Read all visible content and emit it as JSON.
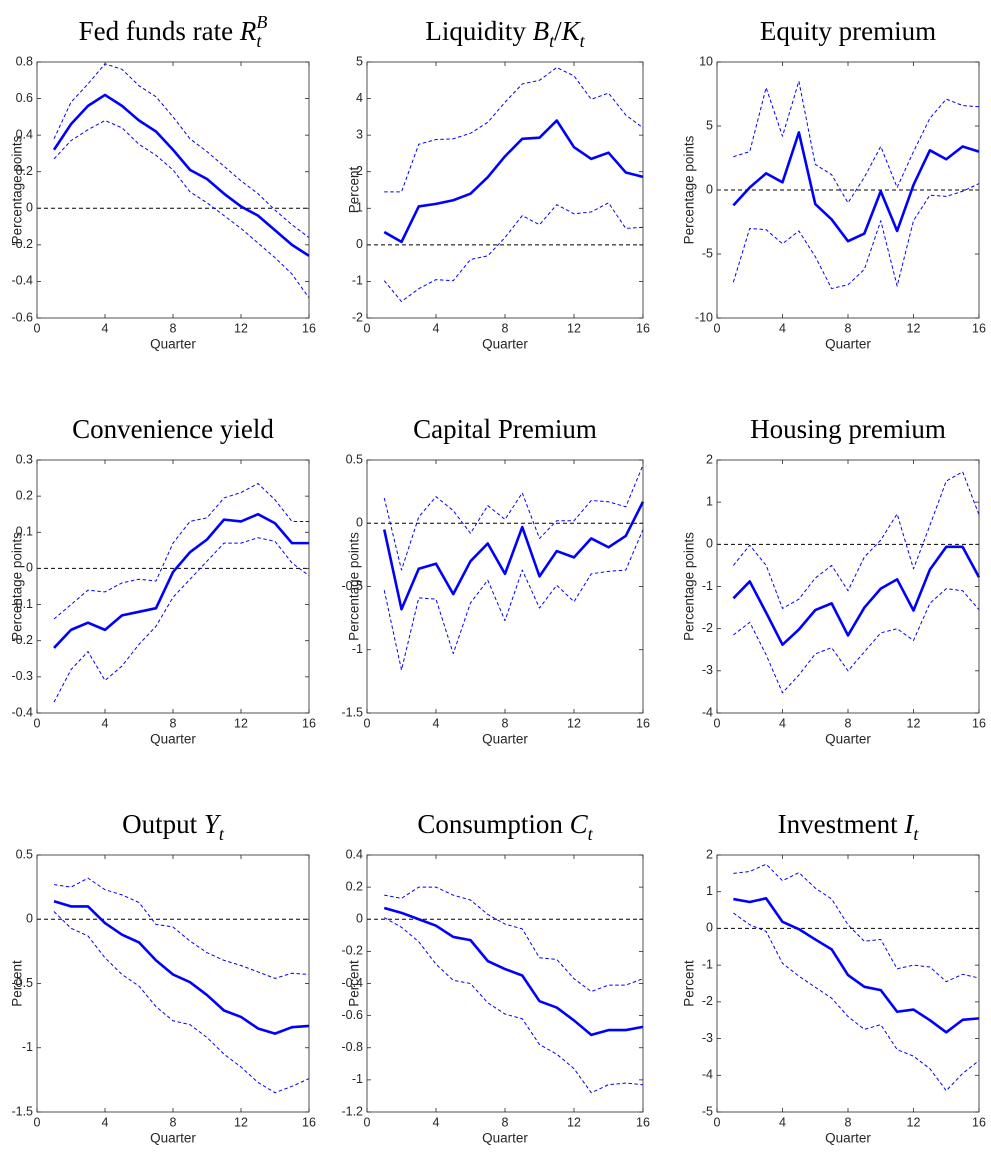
{
  "chart_data": [
    {
      "type": "line",
      "title": [
        {
          "text": "Fed funds rate "
        },
        {
          "text": "R",
          "italic": true,
          "sub": "t",
          "sup": "B"
        }
      ],
      "xlabel": "Quarter",
      "ylabel": "Percentage points",
      "x": [
        1,
        2,
        3,
        4,
        5,
        6,
        7,
        8,
        9,
        10,
        11,
        12,
        13,
        14,
        15,
        16
      ],
      "xlim": [
        0,
        16
      ],
      "xticks": [
        0,
        4,
        8,
        12,
        16
      ],
      "ylim": [
        -0.6,
        0.8
      ],
      "yticks": [
        -0.6,
        -0.4,
        -0.2,
        0,
        0.2,
        0.4,
        0.6,
        0.8
      ],
      "zero_line": 0,
      "series": [
        {
          "style": "solid",
          "color": "#0000ff",
          "values": [
            0.32,
            0.46,
            0.56,
            0.62,
            0.56,
            0.48,
            0.42,
            0.32,
            0.21,
            0.16,
            0.08,
            0.01,
            -0.04,
            -0.12,
            -0.2,
            -0.26
          ]
        },
        {
          "style": "dashed",
          "color": "#0000ff",
          "values": [
            0.38,
            0.58,
            0.68,
            0.79,
            0.76,
            0.67,
            0.61,
            0.5,
            0.38,
            0.31,
            0.23,
            0.15,
            0.08,
            -0.01,
            -0.09,
            -0.16
          ]
        },
        {
          "style": "dashed",
          "color": "#0000ff",
          "values": [
            0.27,
            0.37,
            0.43,
            0.48,
            0.44,
            0.35,
            0.29,
            0.21,
            0.09,
            0.03,
            -0.04,
            -0.11,
            -0.19,
            -0.27,
            -0.36,
            -0.49
          ]
        }
      ]
    },
    {
      "type": "line",
      "title": [
        {
          "text": "Liquidity "
        },
        {
          "text": "B",
          "italic": true,
          "sub": "t"
        },
        {
          "text": "/"
        },
        {
          "text": "K",
          "italic": true,
          "sub": "t"
        }
      ],
      "xlabel": "Quarter",
      "ylabel": "Percent",
      "x": [
        1,
        2,
        3,
        4,
        5,
        6,
        7,
        8,
        9,
        10,
        11,
        12,
        13,
        14,
        15,
        16
      ],
      "xlim": [
        0,
        16
      ],
      "xticks": [
        0,
        4,
        8,
        12,
        16
      ],
      "ylim": [
        -2,
        5
      ],
      "yticks": [
        -2,
        -1,
        0,
        1,
        2,
        3,
        4,
        5
      ],
      "zero_line": 0,
      "series": [
        {
          "style": "solid",
          "color": "#0000ff",
          "values": [
            0.35,
            0.08,
            1.05,
            1.12,
            1.22,
            1.4,
            1.85,
            2.42,
            2.9,
            2.93,
            3.4,
            2.67,
            2.35,
            2.52,
            1.98,
            1.86
          ]
        },
        {
          "style": "dashed",
          "color": "#0000ff",
          "values": [
            1.45,
            1.45,
            2.75,
            2.88,
            2.9,
            3.05,
            3.35,
            3.9,
            4.4,
            4.5,
            4.85,
            4.62,
            3.98,
            4.15,
            3.55,
            3.2
          ]
        },
        {
          "style": "dashed",
          "color": "#0000ff",
          "values": [
            -0.98,
            -1.55,
            -1.2,
            -0.95,
            -0.98,
            -0.4,
            -0.3,
            0.2,
            0.8,
            0.55,
            1.1,
            0.85,
            0.9,
            1.15,
            0.45,
            0.48
          ]
        }
      ]
    },
    {
      "type": "line",
      "title": [
        {
          "text": "Equity premium"
        }
      ],
      "xlabel": "Quarter",
      "ylabel": "Percentage points",
      "x": [
        1,
        2,
        3,
        4,
        5,
        6,
        7,
        8,
        9,
        10,
        11,
        12,
        13,
        14,
        15,
        16
      ],
      "xlim": [
        0,
        16
      ],
      "xticks": [
        0,
        4,
        8,
        12,
        16
      ],
      "ylim": [
        -10,
        10
      ],
      "yticks": [
        -10,
        -5,
        0,
        5,
        10
      ],
      "zero_line": 0,
      "series": [
        {
          "style": "solid",
          "color": "#0000ff",
          "values": [
            -1.2,
            0.2,
            1.3,
            0.6,
            4.5,
            -1.1,
            -2.3,
            -4.0,
            -3.4,
            -0.1,
            -3.2,
            0.4,
            3.1,
            2.4,
            3.4,
            3.0
          ]
        },
        {
          "style": "dashed",
          "color": "#0000ff",
          "values": [
            2.6,
            3.0,
            8.0,
            4.2,
            8.5,
            2.0,
            1.2,
            -1.0,
            1.0,
            3.4,
            0.2,
            3.0,
            5.6,
            7.1,
            6.6,
            6.5
          ]
        },
        {
          "style": "dashed",
          "color": "#0000ff",
          "values": [
            -7.2,
            -3.0,
            -3.1,
            -4.2,
            -3.2,
            -5.2,
            -7.7,
            -7.4,
            -6.2,
            -2.4,
            -7.5,
            -2.4,
            -0.4,
            -0.5,
            -0.1,
            0.5
          ]
        }
      ]
    },
    {
      "type": "line",
      "title": [
        {
          "text": "Convenience yield"
        }
      ],
      "xlabel": "Quarter",
      "ylabel": "Percentage points",
      "x": [
        1,
        2,
        3,
        4,
        5,
        6,
        7,
        8,
        9,
        10,
        11,
        12,
        13,
        14,
        15,
        16
      ],
      "xlim": [
        0,
        16
      ],
      "xticks": [
        0,
        4,
        8,
        12,
        16
      ],
      "ylim": [
        -0.4,
        0.3
      ],
      "yticks": [
        -0.4,
        -0.3,
        -0.2,
        -0.1,
        0,
        0.1,
        0.2,
        0.3
      ],
      "zero_line": 0,
      "series": [
        {
          "style": "solid",
          "color": "#0000ff",
          "values": [
            -0.22,
            -0.17,
            -0.15,
            -0.17,
            -0.13,
            -0.12,
            -0.11,
            -0.01,
            0.045,
            0.08,
            0.135,
            0.13,
            0.15,
            0.125,
            0.07,
            0.07
          ]
        },
        {
          "style": "dashed",
          "color": "#0000ff",
          "values": [
            -0.14,
            -0.1,
            -0.06,
            -0.065,
            -0.04,
            -0.03,
            -0.035,
            0.07,
            0.13,
            0.14,
            0.195,
            0.21,
            0.235,
            0.19,
            0.13,
            0.13
          ]
        },
        {
          "style": "dashed",
          "color": "#0000ff",
          "values": [
            -0.37,
            -0.28,
            -0.23,
            -0.31,
            -0.27,
            -0.21,
            -0.16,
            -0.08,
            -0.03,
            0.02,
            0.07,
            0.07,
            0.085,
            0.075,
            0.015,
            -0.02
          ]
        }
      ]
    },
    {
      "type": "line",
      "title": [
        {
          "text": "Capital Premium"
        }
      ],
      "xlabel": "Quarter",
      "ylabel": "Percentage points",
      "x": [
        1,
        2,
        3,
        4,
        5,
        6,
        7,
        8,
        9,
        10,
        11,
        12,
        13,
        14,
        15,
        16
      ],
      "xlim": [
        0,
        16
      ],
      "xticks": [
        0,
        4,
        8,
        12,
        16
      ],
      "ylim": [
        -1.5,
        0.5
      ],
      "yticks": [
        -1.5,
        -1,
        -0.5,
        0,
        0.5
      ],
      "zero_line": 0,
      "series": [
        {
          "style": "solid",
          "color": "#0000ff",
          "values": [
            -0.05,
            -0.68,
            -0.36,
            -0.32,
            -0.56,
            -0.3,
            -0.16,
            -0.4,
            -0.03,
            -0.42,
            -0.22,
            -0.27,
            -0.12,
            -0.19,
            -0.1,
            0.17
          ]
        },
        {
          "style": "dashed",
          "color": "#0000ff",
          "values": [
            0.2,
            -0.37,
            0.05,
            0.21,
            0.1,
            -0.08,
            0.14,
            0.03,
            0.24,
            -0.12,
            0.02,
            0.02,
            0.18,
            0.17,
            0.13,
            0.46
          ]
        },
        {
          "style": "dashed",
          "color": "#0000ff",
          "values": [
            -0.53,
            -1.16,
            -0.59,
            -0.6,
            -1.03,
            -0.63,
            -0.45,
            -0.77,
            -0.37,
            -0.67,
            -0.49,
            -0.62,
            -0.4,
            -0.38,
            -0.37,
            -0.05
          ]
        }
      ]
    },
    {
      "type": "line",
      "title": [
        {
          "text": "Housing premium"
        }
      ],
      "xlabel": "Quarter",
      "ylabel": "Percentage points",
      "x": [
        1,
        2,
        3,
        4,
        5,
        6,
        7,
        8,
        9,
        10,
        11,
        12,
        13,
        14,
        15,
        16
      ],
      "xlim": [
        0,
        16
      ],
      "xticks": [
        0,
        4,
        8,
        12,
        16
      ],
      "ylim": [
        -4,
        2
      ],
      "yticks": [
        -4,
        -3,
        -2,
        -1,
        0,
        1,
        2
      ],
      "zero_line": 0,
      "series": [
        {
          "style": "solid",
          "color": "#0000ff",
          "values": [
            -1.28,
            -0.88,
            -1.62,
            -2.38,
            -2.02,
            -1.56,
            -1.4,
            -2.16,
            -1.5,
            -1.05,
            -0.83,
            -1.57,
            -0.6,
            -0.06,
            -0.06,
            -0.78
          ]
        },
        {
          "style": "dashed",
          "color": "#0000ff",
          "values": [
            -0.5,
            -0.02,
            -0.5,
            -1.52,
            -1.3,
            -0.8,
            -0.5,
            -1.1,
            -0.3,
            0.1,
            0.72,
            -0.58,
            0.45,
            1.5,
            1.72,
            0.7
          ]
        },
        {
          "style": "dashed",
          "color": "#0000ff",
          "values": [
            -2.15,
            -1.85,
            -2.62,
            -3.52,
            -3.1,
            -2.6,
            -2.45,
            -3.0,
            -2.55,
            -2.1,
            -2.0,
            -2.28,
            -1.4,
            -1.05,
            -1.1,
            -1.55
          ]
        }
      ]
    },
    {
      "type": "line",
      "title": [
        {
          "text": "Output "
        },
        {
          "text": "Y",
          "italic": true,
          "sub": "t"
        }
      ],
      "xlabel": "Quarter",
      "ylabel": "Percent",
      "x": [
        1,
        2,
        3,
        4,
        5,
        6,
        7,
        8,
        9,
        10,
        11,
        12,
        13,
        14,
        15,
        16
      ],
      "xlim": [
        0,
        16
      ],
      "xticks": [
        0,
        4,
        8,
        12,
        16
      ],
      "ylim": [
        -1.5,
        0.5
      ],
      "yticks": [
        -1.5,
        -1,
        -0.5,
        0,
        0.5
      ],
      "zero_line": 0,
      "series": [
        {
          "style": "solid",
          "color": "#0000ff",
          "values": [
            0.14,
            0.1,
            0.1,
            -0.03,
            -0.12,
            -0.18,
            -0.32,
            -0.43,
            -0.49,
            -0.59,
            -0.71,
            -0.76,
            -0.85,
            -0.89,
            -0.84,
            -0.83
          ]
        },
        {
          "style": "dashed",
          "color": "#0000ff",
          "values": [
            0.27,
            0.25,
            0.32,
            0.23,
            0.19,
            0.13,
            -0.04,
            -0.06,
            -0.17,
            -0.26,
            -0.32,
            -0.36,
            -0.41,
            -0.46,
            -0.42,
            -0.43
          ]
        },
        {
          "style": "dashed",
          "color": "#0000ff",
          "values": [
            0.06,
            -0.07,
            -0.13,
            -0.3,
            -0.43,
            -0.52,
            -0.68,
            -0.79,
            -0.82,
            -0.92,
            -1.05,
            -1.15,
            -1.27,
            -1.35,
            -1.3,
            -1.24
          ]
        }
      ]
    },
    {
      "type": "line",
      "title": [
        {
          "text": "Consumption "
        },
        {
          "text": "C",
          "italic": true,
          "sub": "t"
        }
      ],
      "xlabel": "Quarter",
      "ylabel": "Percent",
      "x": [
        1,
        2,
        3,
        4,
        5,
        6,
        7,
        8,
        9,
        10,
        11,
        12,
        13,
        14,
        15,
        16
      ],
      "xlim": [
        0,
        16
      ],
      "xticks": [
        0,
        4,
        8,
        12,
        16
      ],
      "ylim": [
        -1.2,
        0.4
      ],
      "yticks": [
        -1.2,
        -1,
        -0.8,
        -0.6,
        -0.4,
        -0.2,
        0,
        0.2,
        0.4
      ],
      "zero_line": 0,
      "series": [
        {
          "style": "solid",
          "color": "#0000ff",
          "values": [
            0.07,
            0.04,
            0.0,
            -0.04,
            -0.11,
            -0.13,
            -0.26,
            -0.31,
            -0.35,
            -0.51,
            -0.55,
            -0.63,
            -0.72,
            -0.69,
            -0.69,
            -0.67
          ]
        },
        {
          "style": "dashed",
          "color": "#0000ff",
          "values": [
            0.15,
            0.13,
            0.2,
            0.2,
            0.15,
            0.12,
            0.03,
            -0.03,
            -0.06,
            -0.24,
            -0.25,
            -0.37,
            -0.45,
            -0.41,
            -0.41,
            -0.37
          ]
        },
        {
          "style": "dashed",
          "color": "#0000ff",
          "values": [
            0.01,
            -0.05,
            -0.14,
            -0.28,
            -0.38,
            -0.4,
            -0.52,
            -0.59,
            -0.62,
            -0.78,
            -0.84,
            -0.93,
            -1.08,
            -1.03,
            -1.02,
            -1.03
          ]
        }
      ]
    },
    {
      "type": "line",
      "title": [
        {
          "text": "Investment "
        },
        {
          "text": "I",
          "italic": true,
          "sub": "t"
        }
      ],
      "xlabel": "Quarter",
      "ylabel": "Percent",
      "x": [
        1,
        2,
        3,
        4,
        5,
        6,
        7,
        8,
        9,
        10,
        11,
        12,
        13,
        14,
        15,
        16
      ],
      "xlim": [
        0,
        16
      ],
      "xticks": [
        0,
        4,
        8,
        12,
        16
      ],
      "ylim": [
        -5,
        2
      ],
      "yticks": [
        -5,
        -4,
        -3,
        -2,
        -1,
        0,
        1,
        2
      ],
      "zero_line": 0,
      "series": [
        {
          "style": "solid",
          "color": "#0000ff",
          "values": [
            0.8,
            0.72,
            0.82,
            0.18,
            -0.02,
            -0.3,
            -0.57,
            -1.27,
            -1.59,
            -1.68,
            -2.27,
            -2.21,
            -2.5,
            -2.83,
            -2.49,
            -2.45
          ]
        },
        {
          "style": "dashed",
          "color": "#0000ff",
          "values": [
            1.5,
            1.55,
            1.75,
            1.3,
            1.52,
            1.1,
            0.8,
            0.1,
            -0.35,
            -0.3,
            -1.1,
            -1.0,
            -1.05,
            -1.45,
            -1.25,
            -1.35
          ]
        },
        {
          "style": "dashed",
          "color": "#0000ff",
          "values": [
            0.42,
            0.1,
            -0.08,
            -0.95,
            -1.3,
            -1.6,
            -1.9,
            -2.4,
            -2.75,
            -2.62,
            -3.3,
            -3.48,
            -3.82,
            -4.42,
            -3.95,
            -3.6
          ]
        }
      ]
    }
  ]
}
